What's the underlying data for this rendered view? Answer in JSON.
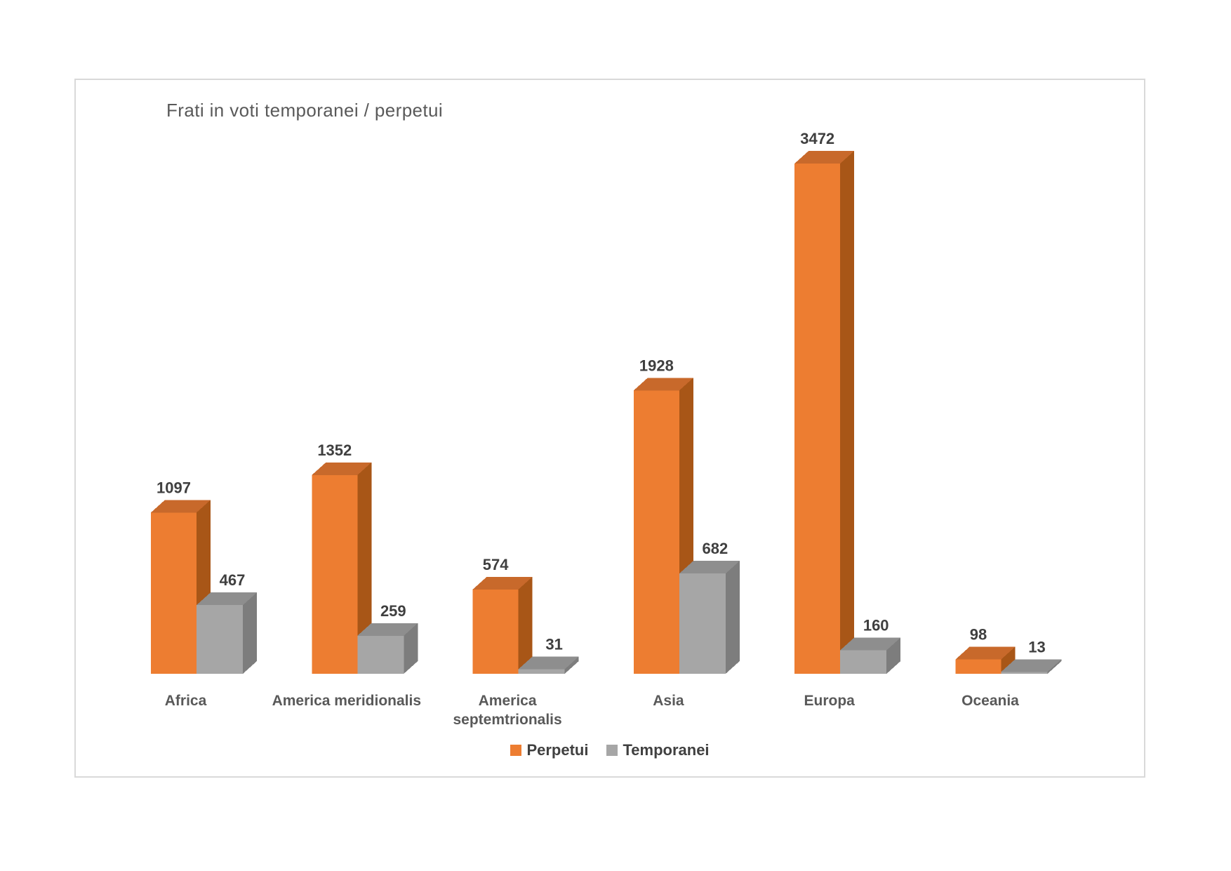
{
  "title": "Frati in voti temporanei / perpetui",
  "chart_data": {
    "type": "bar",
    "subtype": "3d-clustered-column",
    "title": "Frati in voti temporanei / perpetui",
    "categories": [
      "Africa",
      "America meridionalis",
      "America septemtrionalis",
      "Asia",
      "Europa",
      "Oceania"
    ],
    "series": [
      {
        "name": "Perpetui",
        "color": "#ED7D31",
        "values": [
          1097,
          1352,
          574,
          1928,
          3472,
          98
        ]
      },
      {
        "name": "Temporanei",
        "color": "#A6A6A6",
        "values": [
          467,
          259,
          31,
          682,
          160,
          13
        ]
      }
    ],
    "data_labels": true,
    "legend_position": "bottom",
    "axes_visible": false,
    "gridlines": false,
    "ylim": [
      0,
      3472
    ]
  },
  "legend": {
    "items": [
      {
        "label": "Perpetui",
        "color": "#ED7D31"
      },
      {
        "label": "Temporanei",
        "color": "#A6A6A6"
      }
    ]
  },
  "colors": {
    "background": "#FFFFFF",
    "chart_border": "#D9D9D9",
    "title_text": "#595959",
    "value_label_text": "#3F3F3F",
    "category_label_text": "#595959",
    "legend_text": "#404040",
    "series_faces": [
      {
        "front": "#ED7D31",
        "top": "#C8692B",
        "side": "#A85617"
      },
      {
        "front": "#A6A6A6",
        "top": "#8E8E8E",
        "side": "#7D7D7D"
      }
    ]
  }
}
